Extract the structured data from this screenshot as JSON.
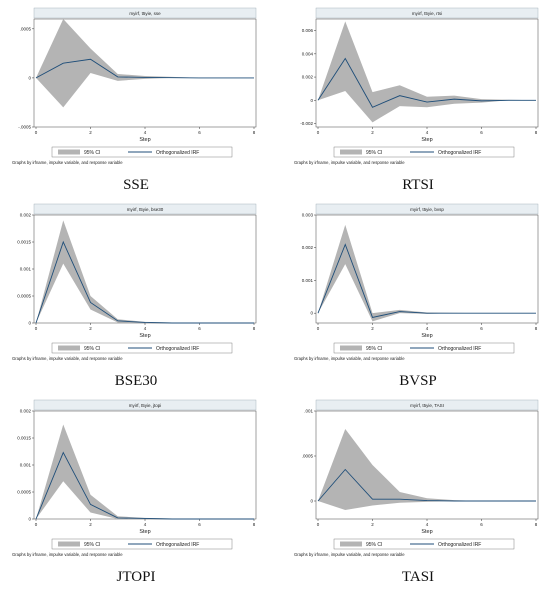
{
  "common": {
    "x_axis_label": "Step",
    "legend_ci": "95% CI",
    "legend_irf": "Orthogonalized IRF",
    "note": "Graphs by irfname, impulse variable, and response variable"
  },
  "colors": {
    "background": "#ffffff",
    "plot_area": "#ffffff",
    "ci_band": "#b4b4b4",
    "irf_line": "#1f4e79",
    "plot_title_bar": "#e8eef2"
  },
  "chart_data": [
    {
      "type": "area",
      "caption": "SSE",
      "plot_title": "myirf, t5yie, sse",
      "x": [
        0,
        1,
        2,
        3,
        4,
        5,
        6,
        7,
        8
      ],
      "xticks": [
        0,
        2,
        4,
        6,
        8
      ],
      "ylim": [
        -0.0005,
        0.0006
      ],
      "yticks": [
        {
          "v": -0.0005,
          "label": "-.0005"
        },
        {
          "v": 0,
          "label": "0"
        },
        {
          "v": 0.0005,
          "label": ".0005"
        }
      ],
      "series": [
        {
          "name": "95% CI",
          "lower": [
            0,
            -0.0003,
            5e-05,
            -3e-05,
            -1e-05,
            0,
            0,
            0,
            0
          ],
          "upper": [
            0,
            0.0006,
            0.0003,
            4e-05,
            2e-05,
            1e-05,
            0,
            0,
            0
          ]
        },
        {
          "name": "Orthogonalized IRF",
          "values": [
            0,
            0.00015,
            0.00019,
            1e-05,
            5e-06,
            2e-06,
            0,
            0,
            0
          ]
        }
      ]
    },
    {
      "type": "area",
      "caption": "RTSI",
      "plot_title": "myirf, t5yie, rtsi",
      "x": [
        0,
        1,
        2,
        3,
        4,
        5,
        6,
        7,
        8
      ],
      "xticks": [
        0,
        2,
        4,
        6,
        8
      ],
      "ylim": [
        -0.0023,
        0.007
      ],
      "yticks": [
        {
          "v": -0.002,
          "label": "-0.002"
        },
        {
          "v": 0,
          "label": "0"
        },
        {
          "v": 0.002,
          "label": "0.002"
        },
        {
          "v": 0.004,
          "label": "0.004"
        },
        {
          "v": 0.006,
          "label": "0.006"
        }
      ],
      "series": [
        {
          "name": "95% CI",
          "lower": [
            0,
            0.0008,
            -0.0019,
            -0.0005,
            -0.0006,
            -0.0003,
            -0.0002,
            0,
            0
          ],
          "upper": [
            0,
            0.0068,
            0.0007,
            0.0013,
            0.0003,
            0.0004,
            0.0001,
            5e-05,
            0
          ]
        },
        {
          "name": "Orthogonalized IRF",
          "values": [
            0,
            0.0036,
            -0.0006,
            0.0004,
            -0.00015,
            0.0001,
            -5e-05,
            0,
            0
          ]
        }
      ]
    },
    {
      "type": "area",
      "caption": "BSE30",
      "plot_title": "myirf, t5yie, bse30",
      "x": [
        0,
        1,
        2,
        3,
        4,
        5,
        6,
        7,
        8
      ],
      "xticks": [
        0,
        2,
        4,
        6,
        8
      ],
      "ylim": [
        0,
        0.002
      ],
      "yticks": [
        {
          "v": 0,
          "label": "0"
        },
        {
          "v": 0.0005,
          "label": "0.0005"
        },
        {
          "v": 0.001,
          "label": "0.001"
        },
        {
          "v": 0.0015,
          "label": "0.0015"
        },
        {
          "v": 0.002,
          "label": "0.002"
        }
      ],
      "series": [
        {
          "name": "95% CI",
          "lower": [
            0,
            0.0011,
            0.00025,
            1e-05,
            0,
            0,
            0,
            0,
            0
          ],
          "upper": [
            0,
            0.0019,
            0.0005,
            7e-05,
            2e-05,
            1e-05,
            0,
            0,
            0
          ]
        },
        {
          "name": "Orthogonalized IRF",
          "values": [
            0,
            0.0015,
            0.00038,
            4e-05,
            1e-05,
            0,
            0,
            0,
            0
          ]
        }
      ]
    },
    {
      "type": "area",
      "caption": "BVSP",
      "plot_title": "myirf, t5yie, bvsp",
      "x": [
        0,
        1,
        2,
        3,
        4,
        5,
        6,
        7,
        8
      ],
      "xticks": [
        0,
        2,
        4,
        6,
        8
      ],
      "ylim": [
        -0.0003,
        0.003
      ],
      "yticks": [
        {
          "v": 0,
          "label": "0"
        },
        {
          "v": 0.001,
          "label": "0.001"
        },
        {
          "v": 0.002,
          "label": "0.002"
        },
        {
          "v": 0.003,
          "label": "0.003"
        }
      ],
      "series": [
        {
          "name": "95% CI",
          "lower": [
            0,
            0.0015,
            -0.00025,
            0,
            -2e-05,
            0,
            0,
            0,
            0
          ],
          "upper": [
            0,
            0.0027,
            0,
            0.0001,
            2e-05,
            1e-05,
            0,
            0,
            0
          ]
        },
        {
          "name": "Orthogonalized IRF",
          "values": [
            0,
            0.0021,
            -0.00013,
            5e-05,
            0,
            0,
            0,
            0,
            0
          ]
        }
      ]
    },
    {
      "type": "area",
      "caption": "JTOPI",
      "plot_title": "myirf, t5yie, jtopi",
      "x": [
        0,
        1,
        2,
        3,
        4,
        5,
        6,
        7,
        8
      ],
      "xticks": [
        0,
        2,
        4,
        6,
        8
      ],
      "ylim": [
        0,
        0.002
      ],
      "yticks": [
        {
          "v": 0,
          "label": "0"
        },
        {
          "v": 0.0005,
          "label": "0.0005"
        },
        {
          "v": 0.001,
          "label": "0.001"
        },
        {
          "v": 0.0015,
          "label": "0.0015"
        },
        {
          "v": 0.002,
          "label": "0.002"
        }
      ],
      "series": [
        {
          "name": "95% CI",
          "lower": [
            0,
            0.0007,
            0.00012,
            0,
            0,
            0,
            0,
            0,
            0
          ],
          "upper": [
            0,
            0.00175,
            0.00045,
            5e-05,
            2e-05,
            1e-05,
            0,
            0,
            0
          ]
        },
        {
          "name": "Orthogonalized IRF",
          "values": [
            0,
            0.00123,
            0.00027,
            2e-05,
            1e-05,
            0,
            0,
            0,
            0
          ]
        }
      ]
    },
    {
      "type": "area",
      "caption": "TASI",
      "plot_title": "myirf, t5yie, TASI",
      "x": [
        0,
        1,
        2,
        3,
        4,
        5,
        6,
        7,
        8
      ],
      "xticks": [
        0,
        2,
        4,
        6,
        8
      ],
      "ylim": [
        -0.0002,
        0.001
      ],
      "yticks": [
        {
          "v": 0,
          "label": "0"
        },
        {
          "v": 0.0005,
          "label": ".0005"
        },
        {
          "v": 0.001,
          "label": ".001"
        }
      ],
      "series": [
        {
          "name": "95% CI",
          "lower": [
            0,
            -0.0001,
            -5e-05,
            -2e-05,
            -1e-05,
            0,
            0,
            0,
            0
          ],
          "upper": [
            0,
            0.0008,
            0.0004,
            0.0001,
            3e-05,
            1e-05,
            0,
            0,
            0
          ]
        },
        {
          "name": "Orthogonalized IRF",
          "values": [
            0,
            0.00035,
            2e-05,
            2e-05,
            5e-06,
            0,
            0,
            0,
            0
          ]
        }
      ]
    }
  ]
}
